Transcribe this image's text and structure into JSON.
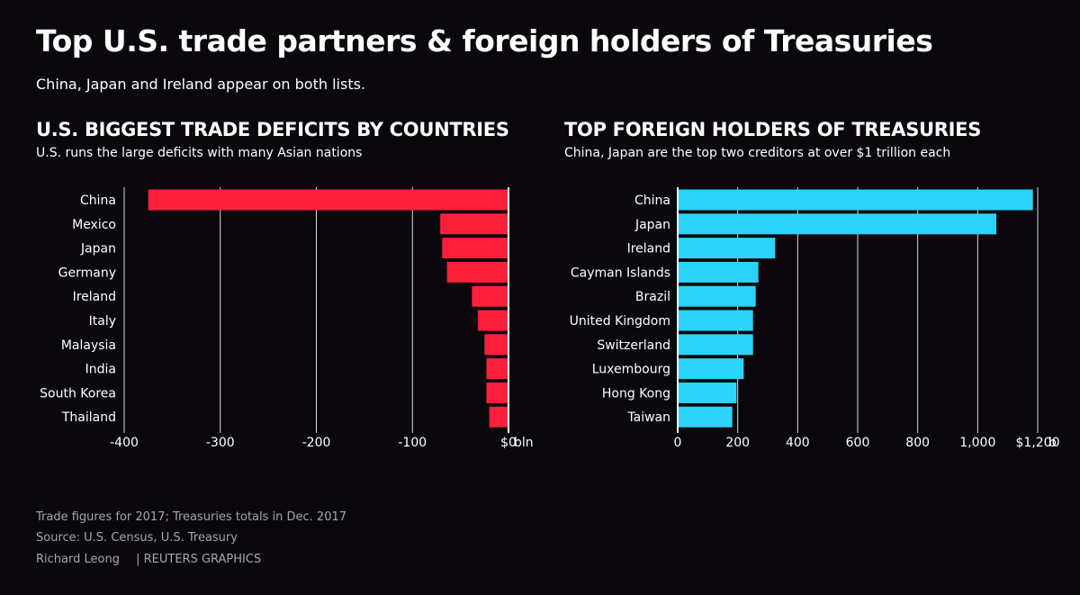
{
  "title": "Top U.S. trade partners & foreign holders of Treasuries",
  "subtitle": "China, Japan and Ireland appear on both lists.",
  "chart_data": [
    {
      "type": "bar",
      "orientation": "horizontal",
      "title": "U.S. BIGGEST TRADE DEFICITS BY COUNTRIES",
      "subtitle": "U.S. runs the large deficits with many Asian nations",
      "categories": [
        "China",
        "Mexico",
        "Japan",
        "Germany",
        "Ireland",
        "Italy",
        "Malaysia",
        "India",
        "South Korea",
        "Thailand"
      ],
      "values": [
        -375,
        -71,
        -69,
        -64,
        -38,
        -32,
        -25,
        -23,
        -23,
        -20
      ],
      "xlim": [
        -400,
        0
      ],
      "xticks": [
        "-400",
        "-300",
        "-200",
        "-100",
        "$0"
      ],
      "tick_values": [
        -400,
        -300,
        -200,
        -100,
        0
      ],
      "unit": "bln",
      "bar_color": "#ff1f3d",
      "grid": true
    },
    {
      "type": "bar",
      "orientation": "horizontal",
      "title": "TOP FOREIGN HOLDERS OF TREASURIES",
      "subtitle": "China, Japan are the top two creditors at over $1 trillion each",
      "categories": [
        "China",
        "Japan",
        "Ireland",
        "Cayman Islands",
        "Brazil",
        "United Kingdom",
        "Switzerland",
        "Luxembourg",
        "Hong Kong",
        "Taiwan"
      ],
      "values": [
        1184,
        1062,
        325,
        269,
        260,
        251,
        251,
        220,
        196,
        182
      ],
      "xlim": [
        0,
        1200
      ],
      "xticks": [
        "0",
        "200",
        "400",
        "600",
        "800",
        "1,000",
        "$1,200"
      ],
      "tick_values": [
        0,
        200,
        400,
        600,
        800,
        1000,
        1200
      ],
      "unit": "b",
      "bar_color": "#2ad4fb",
      "grid": true
    }
  ],
  "footer": {
    "note": "Trade figures for 2017; Treasuries totals in Dec. 2017",
    "source": "Source: U.S. Census, U.S. Treasury",
    "author": "Richard Leong",
    "agency": "| REUTERS GRAPHICS"
  },
  "colors": {
    "background": "#0b080d",
    "text": "#ffffff",
    "footer_text": "#a6a6a6",
    "grid": "#ffffff"
  }
}
